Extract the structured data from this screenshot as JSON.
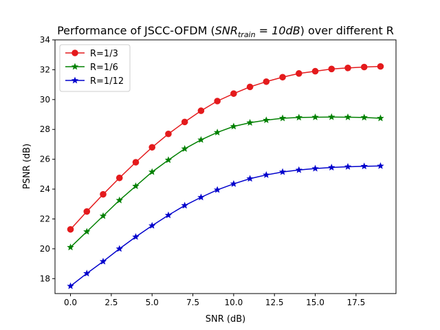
{
  "chart_data": {
    "type": "line",
    "title": {
      "prefix": "Performance of JSCC-OFDM (",
      "math_main": "SNR",
      "math_sub": "train",
      "math_rest": " = 10dB",
      "suffix": ") over different R"
    },
    "xlabel": "SNR (dB)",
    "ylabel": "PSNR (dB)",
    "xlim": [
      -0.95,
      19.95
    ],
    "ylim": [
      17,
      34
    ],
    "xticks": [
      0.0,
      2.5,
      5.0,
      7.5,
      10.0,
      12.5,
      15.0,
      17.5
    ],
    "xtick_labels": [
      "0.0",
      "2.5",
      "5.0",
      "7.5",
      "10.0",
      "12.5",
      "15.0",
      "17.5"
    ],
    "yticks": [
      18,
      20,
      22,
      24,
      26,
      28,
      30,
      32,
      34
    ],
    "ytick_labels": [
      "18",
      "20",
      "22",
      "24",
      "26",
      "28",
      "30",
      "32",
      "34"
    ],
    "grid": false,
    "legend_position": "upper-left",
    "x": [
      0,
      1,
      2,
      3,
      4,
      5,
      6,
      7,
      8,
      9,
      10,
      11,
      12,
      13,
      14,
      15,
      16,
      17,
      18,
      19
    ],
    "series": [
      {
        "name": "R=1/3",
        "color": "#e41a1c",
        "marker": "circle",
        "values": [
          21.3,
          22.5,
          23.65,
          24.75,
          25.8,
          26.8,
          27.7,
          28.5,
          29.25,
          29.9,
          30.4,
          30.85,
          31.2,
          31.5,
          31.75,
          31.9,
          32.05,
          32.12,
          32.18,
          32.22
        ]
      },
      {
        "name": "R=1/6",
        "color": "#008000",
        "marker": "star",
        "values": [
          20.1,
          21.15,
          22.2,
          23.25,
          24.2,
          25.15,
          25.95,
          26.7,
          27.3,
          27.8,
          28.2,
          28.45,
          28.62,
          28.75,
          28.8,
          28.82,
          28.83,
          28.82,
          28.8,
          28.75
        ]
      },
      {
        "name": "R=1/12",
        "color": "#0000cc",
        "marker": "star",
        "values": [
          17.5,
          18.35,
          19.15,
          20.0,
          20.8,
          21.55,
          22.25,
          22.9,
          23.45,
          23.95,
          24.35,
          24.7,
          24.95,
          25.15,
          25.28,
          25.38,
          25.45,
          25.5,
          25.53,
          25.55
        ]
      }
    ]
  }
}
